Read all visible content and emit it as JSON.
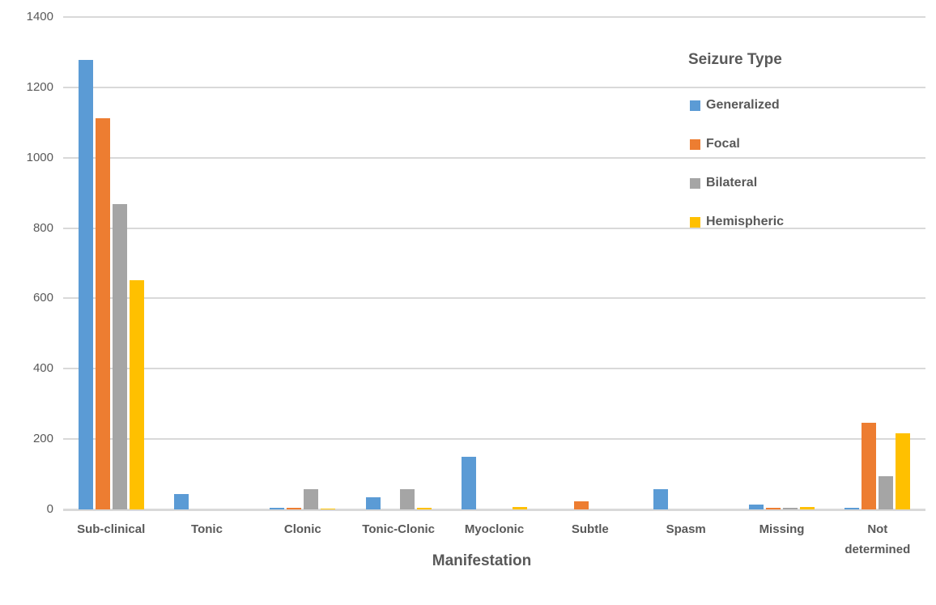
{
  "chart_data": {
    "type": "bar",
    "title": "",
    "legend_title": "Seizure Type",
    "xlabel": "Manifestation",
    "ylabel": "",
    "ylim": [
      0,
      1400
    ],
    "ytick_step": 200,
    "grid": true,
    "legend_position": "top-right-inside",
    "categories": [
      "Sub-clinical",
      "Tonic",
      "Clonic",
      "Tonic-Clonic",
      "Myoclonic",
      "Subtle",
      "Spasm",
      "Missing",
      "Not determined"
    ],
    "series": [
      {
        "name": "Generalized",
        "color": "#5B9BD5",
        "values": [
          1278,
          44,
          4,
          34,
          150,
          0,
          58,
          14,
          4
        ]
      },
      {
        "name": "Focal",
        "color": "#ED7D31",
        "values": [
          1113,
          0,
          4,
          0,
          0,
          23,
          0,
          5,
          247
        ]
      },
      {
        "name": "Bilateral",
        "color": "#A5A5A5",
        "values": [
          868,
          0,
          57,
          57,
          0,
          0,
          0,
          4,
          94
        ]
      },
      {
        "name": "Hemispheric",
        "color": "#FFC000",
        "values": [
          651,
          0,
          3,
          5,
          7,
          0,
          0,
          8,
          217
        ]
      }
    ],
    "colors": {
      "text": "#595959",
      "gridline": "#D9D9D9",
      "axis_line": "#D9D9D9",
      "background": "#FFFFFF"
    },
    "y_tick_labels": [
      "0",
      "200",
      "400",
      "600",
      "800",
      "1000",
      "1200",
      "1400"
    ]
  }
}
